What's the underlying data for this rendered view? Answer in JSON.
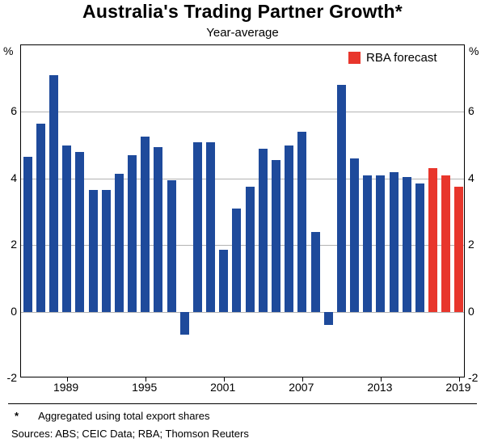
{
  "header": {
    "title": "Australia's Trading Partner Growth*",
    "subtitle": "Year-average"
  },
  "legend": {
    "forecast_label": "RBA forecast"
  },
  "axes": {
    "unit_label": "%"
  },
  "footer": {
    "footnote_marker": "*",
    "footnote_text": "Aggregated using total export shares",
    "sources": "Sources: ABS; CEIC Data; RBA; Thomson Reuters"
  },
  "chart_data": {
    "type": "bar",
    "title": "Australia's Trading Partner Growth*",
    "subtitle": "Year-average",
    "ylabel": "%",
    "ylim": [
      -2,
      8
    ],
    "y_ticks": [
      -2,
      0,
      2,
      4,
      6
    ],
    "grid": true,
    "legend_position": "top-right",
    "legend_entries": [
      {
        "label": "RBA forecast",
        "color": "#e8362c"
      }
    ],
    "x_tick_labels": [
      "1989",
      "1995",
      "2001",
      "2007",
      "2013",
      "2019"
    ],
    "years": [
      1986,
      1987,
      1988,
      1989,
      1990,
      1991,
      1992,
      1993,
      1994,
      1995,
      1996,
      1997,
      1998,
      1999,
      2000,
      2001,
      2002,
      2003,
      2004,
      2005,
      2006,
      2007,
      2008,
      2009,
      2010,
      2011,
      2012,
      2013,
      2014,
      2015,
      2016,
      2017,
      2018,
      2019
    ],
    "values": [
      4.65,
      5.65,
      7.1,
      5.0,
      4.8,
      3.65,
      3.65,
      4.15,
      4.7,
      5.25,
      4.95,
      3.95,
      -0.7,
      5.1,
      5.1,
      1.85,
      3.1,
      3.75,
      4.9,
      4.55,
      5.0,
      5.4,
      2.4,
      -0.4,
      6.8,
      4.6,
      4.1,
      4.1,
      4.2,
      4.05,
      3.85,
      4.3,
      4.1,
      3.75
    ],
    "forecast_years": [
      2017,
      2018,
      2019
    ],
    "colors": {
      "actual": "#1e4a9b",
      "forecast": "#e8362c"
    }
  }
}
